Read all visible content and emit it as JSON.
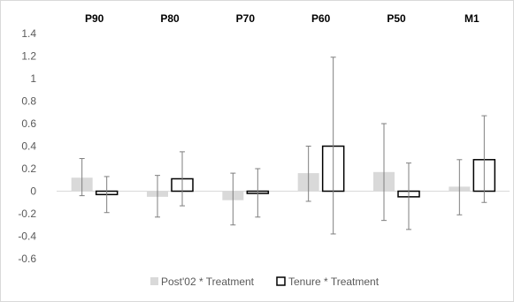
{
  "chart_data": {
    "type": "bar",
    "categories": [
      "P90",
      "P80",
      "P70",
      "P60",
      "P50",
      "M1"
    ],
    "series": [
      {
        "name": "Post'02 * Treatment",
        "color": "#d9d9d9",
        "values": [
          0.12,
          -0.05,
          -0.08,
          0.16,
          0.17,
          0.04
        ],
        "err_low": [
          -0.04,
          -0.23,
          -0.3,
          -0.09,
          -0.26,
          -0.21
        ],
        "err_high": [
          0.29,
          0.14,
          0.16,
          0.4,
          0.6,
          0.28
        ]
      },
      {
        "name": "Tenure * Treatment",
        "color": "#ffffff",
        "values": [
          -0.03,
          0.11,
          -0.02,
          0.4,
          -0.05,
          0.28
        ],
        "err_low": [
          -0.19,
          -0.13,
          -0.23,
          -0.38,
          -0.34,
          -0.1
        ],
        "err_high": [
          0.13,
          0.35,
          0.2,
          1.19,
          0.25,
          0.67
        ]
      }
    ],
    "yticks": [
      "1.4",
      "1.2",
      "1",
      "0.8",
      "0.6",
      "0.4",
      "0.2",
      "0",
      "-0.2",
      "-0.4",
      "-0.6"
    ],
    "ylim": [
      -0.6,
      1.4
    ],
    "grid": false,
    "legend": "bottom",
    "title": "",
    "xlabel": "",
    "ylabel": ""
  }
}
